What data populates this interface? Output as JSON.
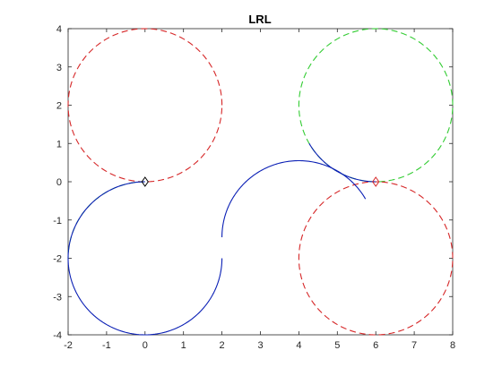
{
  "chart_data": {
    "type": "line",
    "title": "LRL",
    "xlabel": "",
    "ylabel": "",
    "xlim": [
      -2,
      8
    ],
    "ylim": [
      -4,
      4
    ],
    "xticks": [
      -2,
      -1,
      0,
      1,
      2,
      3,
      4,
      5,
      6,
      7,
      8
    ],
    "yticks": [
      -4,
      -3,
      -2,
      -1,
      0,
      1,
      2,
      3,
      4
    ],
    "grid": false,
    "axis_color": "#262626",
    "circles": [
      {
        "cx": 0,
        "cy": 2,
        "r": 2,
        "color": "#d62728",
        "style": "dashed",
        "from_deg": 0,
        "to_deg": 360
      },
      {
        "cx": 0,
        "cy": -2,
        "r": 2,
        "color": "#33cc33",
        "style": "dashed",
        "from_deg": 90,
        "to_deg": 180
      },
      {
        "cx": 6,
        "cy": 2,
        "r": 2,
        "color": "#33cc33",
        "style": "dashed",
        "from_deg": 0,
        "to_deg": 360
      },
      {
        "cx": 6,
        "cy": -2,
        "r": 2,
        "color": "#d62728",
        "style": "dashed",
        "from_deg": 0,
        "to_deg": 360
      }
    ],
    "path": {
      "color": "#0a1fb5",
      "segments": [
        {
          "turn": "L",
          "cx": 0,
          "cy": -2,
          "r": 2,
          "from_deg": 90,
          "to_deg": 360
        },
        {
          "turn": "R",
          "cx": 4,
          "cy": -1.45,
          "r": 2,
          "from_deg": 180,
          "to_deg": 30
        },
        {
          "turn": "L",
          "cx": 6,
          "cy": 2,
          "r": 2,
          "from_deg": 210,
          "to_deg": 270
        }
      ]
    },
    "markers": [
      {
        "x": 0,
        "y": 0,
        "color": "#000000",
        "shape": "diamond"
      },
      {
        "x": 6,
        "y": 0,
        "color": "#d62728",
        "shape": "diamond"
      }
    ]
  }
}
